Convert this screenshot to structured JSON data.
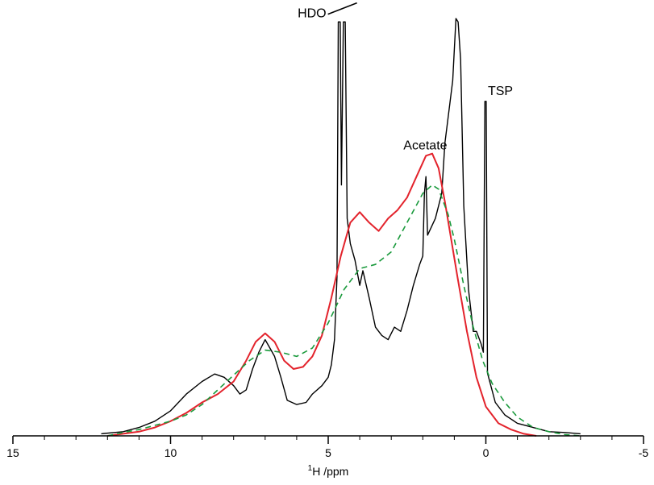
{
  "chart_data": {
    "type": "line",
    "xlabel_sup": "1",
    "xlabel_main": "H /ppm",
    "xlim": [
      15,
      -5
    ],
    "x_reversed": true,
    "ylim": [
      0,
      1
    ],
    "grid": false,
    "ticks_major": [
      15,
      10,
      5,
      0,
      -5
    ],
    "tick_labels": [
      "15",
      "10",
      "5",
      "0",
      "-5"
    ],
    "minor_tick_step": 1,
    "annotations": [
      {
        "text": "HDO",
        "x": 4.6,
        "y": 1.02
      },
      {
        "text": "Acetate",
        "x": 1.92,
        "y": 0.67
      },
      {
        "text": "TSP",
        "x": 0.0,
        "y": 0.8
      }
    ],
    "series": [
      {
        "style": "solid",
        "color": "#000000",
        "points": [
          [
            12.2,
            0.005
          ],
          [
            11.5,
            0.01
          ],
          [
            11,
            0.02
          ],
          [
            10.5,
            0.035
          ],
          [
            10,
            0.06
          ],
          [
            9.5,
            0.1
          ],
          [
            9,
            0.13
          ],
          [
            8.6,
            0.148
          ],
          [
            8.3,
            0.14
          ],
          [
            8,
            0.12
          ],
          [
            7.8,
            0.1
          ],
          [
            7.6,
            0.11
          ],
          [
            7.4,
            0.16
          ],
          [
            7.2,
            0.2
          ],
          [
            7.0,
            0.23
          ],
          [
            6.85,
            0.21
          ],
          [
            6.7,
            0.19
          ],
          [
            6.5,
            0.14
          ],
          [
            6.3,
            0.085
          ],
          [
            6.0,
            0.075
          ],
          [
            5.7,
            0.08
          ],
          [
            5.5,
            0.1
          ],
          [
            5.2,
            0.12
          ],
          [
            5.0,
            0.14
          ],
          [
            4.9,
            0.17
          ],
          [
            4.8,
            0.23
          ],
          [
            4.72,
            0.38
          ],
          [
            4.68,
            0.99
          ],
          [
            4.62,
            0.99
          ],
          [
            4.58,
            0.6
          ],
          [
            4.52,
            0.99
          ],
          [
            4.46,
            0.99
          ],
          [
            4.4,
            0.52
          ],
          [
            4.3,
            0.46
          ],
          [
            4.15,
            0.42
          ],
          [
            4.0,
            0.36
          ],
          [
            3.9,
            0.395
          ],
          [
            3.7,
            0.33
          ],
          [
            3.5,
            0.26
          ],
          [
            3.3,
            0.24
          ],
          [
            3.1,
            0.23
          ],
          [
            2.9,
            0.26
          ],
          [
            2.7,
            0.25
          ],
          [
            2.5,
            0.3
          ],
          [
            2.3,
            0.36
          ],
          [
            2.1,
            0.41
          ],
          [
            2.0,
            0.43
          ],
          [
            1.95,
            0.58
          ],
          [
            1.9,
            0.62
          ],
          [
            1.85,
            0.48
          ],
          [
            1.6,
            0.52
          ],
          [
            1.4,
            0.58
          ],
          [
            1.3,
            0.7
          ],
          [
            1.2,
            0.76
          ],
          [
            1.05,
            0.85
          ],
          [
            0.95,
            0.998
          ],
          [
            0.88,
            0.99
          ],
          [
            0.8,
            0.9
          ],
          [
            0.7,
            0.55
          ],
          [
            0.55,
            0.35
          ],
          [
            0.4,
            0.25
          ],
          [
            0.3,
            0.25
          ],
          [
            0.15,
            0.22
          ],
          [
            0.08,
            0.2
          ],
          [
            0.03,
            0.8
          ],
          [
            -0.01,
            0.8
          ],
          [
            -0.05,
            0.15
          ],
          [
            -0.3,
            0.08
          ],
          [
            -0.6,
            0.05
          ],
          [
            -1.0,
            0.03
          ],
          [
            -1.5,
            0.02
          ],
          [
            -2,
            0.01
          ],
          [
            -2.5,
            0.008
          ],
          [
            -3,
            0.005
          ]
        ]
      },
      {
        "style": "solid",
        "color": "#e3232c",
        "points": [
          [
            12,
            0
          ],
          [
            11.5,
            0.005
          ],
          [
            11,
            0.01
          ],
          [
            10.5,
            0.02
          ],
          [
            10,
            0.035
          ],
          [
            9.5,
            0.055
          ],
          [
            9,
            0.08
          ],
          [
            8.5,
            0.1
          ],
          [
            8,
            0.13
          ],
          [
            7.6,
            0.18
          ],
          [
            7.3,
            0.225
          ],
          [
            7.0,
            0.245
          ],
          [
            6.7,
            0.225
          ],
          [
            6.4,
            0.18
          ],
          [
            6.1,
            0.16
          ],
          [
            5.8,
            0.165
          ],
          [
            5.5,
            0.19
          ],
          [
            5.2,
            0.24
          ],
          [
            4.9,
            0.33
          ],
          [
            4.6,
            0.43
          ],
          [
            4.3,
            0.51
          ],
          [
            4.0,
            0.535
          ],
          [
            3.7,
            0.51
          ],
          [
            3.4,
            0.49
          ],
          [
            3.1,
            0.52
          ],
          [
            2.8,
            0.54
          ],
          [
            2.5,
            0.57
          ],
          [
            2.2,
            0.62
          ],
          [
            1.9,
            0.67
          ],
          [
            1.7,
            0.675
          ],
          [
            1.5,
            0.64
          ],
          [
            1.3,
            0.56
          ],
          [
            1.1,
            0.47
          ],
          [
            0.9,
            0.38
          ],
          [
            0.6,
            0.25
          ],
          [
            0.3,
            0.14
          ],
          [
            0,
            0.07
          ],
          [
            -0.4,
            0.03
          ],
          [
            -0.8,
            0.015
          ],
          [
            -1.2,
            0.005
          ],
          [
            -1.6,
            0
          ]
        ]
      },
      {
        "style": "dashed",
        "color": "#1a9a3c",
        "points": [
          [
            12,
            0
          ],
          [
            11.5,
            0.008
          ],
          [
            11,
            0.015
          ],
          [
            10.5,
            0.025
          ],
          [
            10,
            0.035
          ],
          [
            9.5,
            0.05
          ],
          [
            9,
            0.075
          ],
          [
            8.5,
            0.11
          ],
          [
            8,
            0.145
          ],
          [
            7.5,
            0.18
          ],
          [
            7.0,
            0.205
          ],
          [
            6.5,
            0.2
          ],
          [
            6.0,
            0.19
          ],
          [
            5.5,
            0.21
          ],
          [
            5.0,
            0.27
          ],
          [
            4.5,
            0.35
          ],
          [
            4.0,
            0.4
          ],
          [
            3.5,
            0.41
          ],
          [
            3.0,
            0.44
          ],
          [
            2.5,
            0.51
          ],
          [
            2.0,
            0.58
          ],
          [
            1.7,
            0.6
          ],
          [
            1.5,
            0.59
          ],
          [
            1.2,
            0.53
          ],
          [
            1.0,
            0.47
          ],
          [
            0.7,
            0.36
          ],
          [
            0.4,
            0.26
          ],
          [
            0.1,
            0.18
          ],
          [
            -0.2,
            0.125
          ],
          [
            -0.6,
            0.08
          ],
          [
            -1.0,
            0.045
          ],
          [
            -1.5,
            0.02
          ],
          [
            -2.0,
            0.01
          ],
          [
            -2.5,
            0.003
          ],
          [
            -3,
            0
          ]
        ]
      }
    ]
  }
}
